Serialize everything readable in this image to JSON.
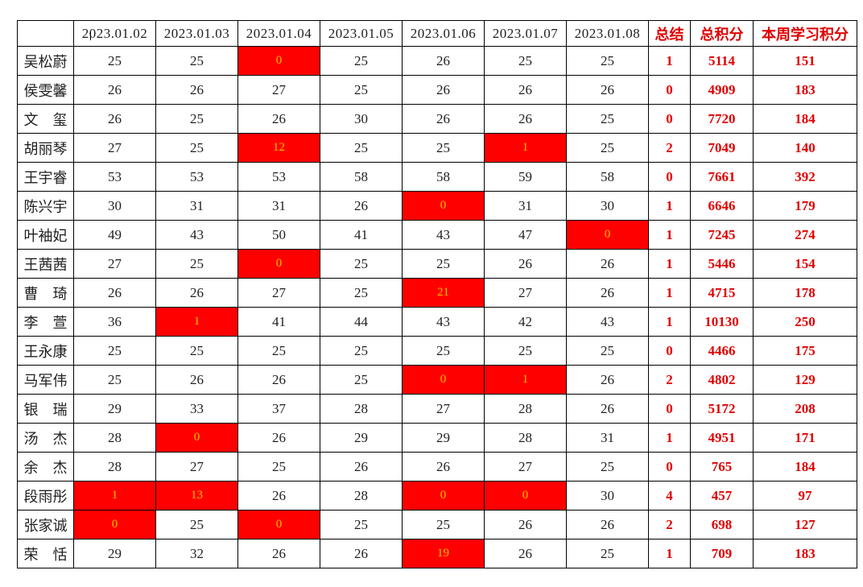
{
  "table": {
    "corner": "",
    "date_columns": [
      "2023.01.02",
      "2023.01.03",
      "2023.01.04",
      "2023.01.05",
      "2023.01.06",
      "2023.01.07",
      "2023.01.08"
    ],
    "summary_columns": [
      "总结",
      "总积分",
      "本周学习积分"
    ],
    "colors": {
      "highlight_bg": "#ff0000",
      "highlight_text": "#ffc000",
      "summary_text": "#e00000",
      "grid": "#000000",
      "number_text": "#1f1f1f"
    },
    "rows": [
      {
        "name": "吴松蔚",
        "scores": [
          25,
          25,
          0,
          25,
          26,
          25,
          25
        ],
        "highlight_cols": [
          2
        ],
        "summary": 1,
        "total_points": 5114,
        "weekly_points": 151
      },
      {
        "name": "侯雯馨",
        "scores": [
          26,
          26,
          27,
          25,
          26,
          26,
          26
        ],
        "highlight_cols": [],
        "summary": 0,
        "total_points": 4909,
        "weekly_points": 183
      },
      {
        "name": "文　玺",
        "scores": [
          26,
          25,
          26,
          30,
          26,
          26,
          25
        ],
        "highlight_cols": [],
        "summary": 0,
        "total_points": 7720,
        "weekly_points": 184
      },
      {
        "name": "胡丽琴",
        "scores": [
          27,
          25,
          12,
          25,
          25,
          1,
          25
        ],
        "highlight_cols": [
          2,
          5
        ],
        "summary": 2,
        "total_points": 7049,
        "weekly_points": 140
      },
      {
        "name": "王宇睿",
        "scores": [
          53,
          53,
          53,
          58,
          58,
          59,
          58
        ],
        "highlight_cols": [],
        "summary": 0,
        "total_points": 7661,
        "weekly_points": 392
      },
      {
        "name": "陈兴宇",
        "scores": [
          30,
          31,
          31,
          26,
          0,
          31,
          30
        ],
        "highlight_cols": [
          4
        ],
        "summary": 1,
        "total_points": 6646,
        "weekly_points": 179
      },
      {
        "name": "叶袖妃",
        "scores": [
          49,
          43,
          50,
          41,
          43,
          47,
          0
        ],
        "highlight_cols": [
          6
        ],
        "summary": 1,
        "total_points": 7245,
        "weekly_points": 274
      },
      {
        "name": "王茜茜",
        "scores": [
          27,
          25,
          0,
          25,
          25,
          26,
          26
        ],
        "highlight_cols": [
          2
        ],
        "summary": 1,
        "total_points": 5446,
        "weekly_points": 154
      },
      {
        "name": "曹　琦",
        "scores": [
          26,
          26,
          27,
          25,
          21,
          27,
          26
        ],
        "highlight_cols": [
          4
        ],
        "summary": 1,
        "total_points": 4715,
        "weekly_points": 178
      },
      {
        "name": "李　萱",
        "scores": [
          36,
          1,
          41,
          44,
          43,
          42,
          43
        ],
        "highlight_cols": [
          1
        ],
        "summary": 1,
        "total_points": 10130,
        "weekly_points": 250
      },
      {
        "name": "王永康",
        "scores": [
          25,
          25,
          25,
          25,
          25,
          25,
          25
        ],
        "highlight_cols": [],
        "summary": 0,
        "total_points": 4466,
        "weekly_points": 175
      },
      {
        "name": "马军伟",
        "scores": [
          25,
          26,
          26,
          25,
          0,
          1,
          26
        ],
        "highlight_cols": [
          4,
          5
        ],
        "summary": 2,
        "total_points": 4802,
        "weekly_points": 129
      },
      {
        "name": "银　瑞",
        "scores": [
          29,
          33,
          37,
          28,
          27,
          28,
          26
        ],
        "highlight_cols": [],
        "summary": 0,
        "total_points": 5172,
        "weekly_points": 208
      },
      {
        "name": "汤　杰",
        "scores": [
          28,
          0,
          26,
          29,
          29,
          28,
          31
        ],
        "highlight_cols": [
          1
        ],
        "summary": 1,
        "total_points": 4951,
        "weekly_points": 171
      },
      {
        "name": "余　杰",
        "scores": [
          28,
          27,
          25,
          26,
          26,
          27,
          25
        ],
        "highlight_cols": [],
        "summary": 0,
        "total_points": 765,
        "weekly_points": 184
      },
      {
        "name": "段雨彤",
        "scores": [
          1,
          13,
          26,
          28,
          0,
          0,
          30
        ],
        "highlight_cols": [
          0,
          1,
          4,
          5
        ],
        "summary": 4,
        "total_points": 457,
        "weekly_points": 97
      },
      {
        "name": "张家诚",
        "scores": [
          0,
          25,
          0,
          25,
          25,
          26,
          26
        ],
        "highlight_cols": [
          0,
          2
        ],
        "summary": 2,
        "total_points": 698,
        "weekly_points": 127
      },
      {
        "name": "荣　恬",
        "scores": [
          29,
          32,
          26,
          26,
          19,
          26,
          25
        ],
        "highlight_cols": [
          4
        ],
        "summary": 1,
        "total_points": 709,
        "weekly_points": 183
      }
    ]
  }
}
